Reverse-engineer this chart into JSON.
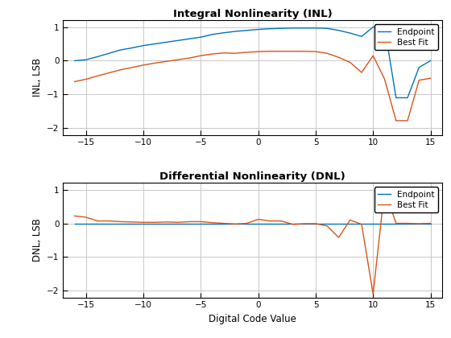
{
  "x": [
    -16,
    -15,
    -14,
    -13,
    -12,
    -11,
    -10,
    -9,
    -8,
    -7,
    -6,
    -5,
    -4,
    -3,
    -2,
    -1,
    0,
    1,
    2,
    3,
    4,
    5,
    6,
    7,
    8,
    9,
    10,
    11,
    12,
    13,
    14,
    15
  ],
  "inl_endpoint": [
    0.0,
    0.03,
    0.12,
    0.22,
    0.32,
    0.38,
    0.45,
    0.5,
    0.55,
    0.6,
    0.65,
    0.7,
    0.78,
    0.83,
    0.87,
    0.9,
    0.93,
    0.95,
    0.96,
    0.97,
    0.97,
    0.97,
    0.96,
    0.9,
    0.82,
    0.72,
    1.0,
    1.0,
    -1.1,
    -1.1,
    -0.2,
    0.0
  ],
  "inl_bestfit": [
    -0.62,
    -0.55,
    -0.45,
    -0.36,
    -0.27,
    -0.2,
    -0.13,
    -0.07,
    -0.02,
    0.03,
    0.08,
    0.15,
    0.2,
    0.23,
    0.22,
    0.25,
    0.27,
    0.28,
    0.28,
    0.28,
    0.28,
    0.27,
    0.22,
    0.1,
    -0.05,
    -0.35,
    0.15,
    -0.55,
    -1.78,
    -1.78,
    -0.58,
    -0.52
  ],
  "dnl_endpoint": [
    0.0,
    0.0,
    0.0,
    0.0,
    0.0,
    0.0,
    0.0,
    0.0,
    0.0,
    0.0,
    0.0,
    0.0,
    0.0,
    0.0,
    0.0,
    0.0,
    0.0,
    0.0,
    0.0,
    0.0,
    0.0,
    0.0,
    0.0,
    0.0,
    0.0,
    0.0,
    0.0,
    0.0,
    0.0,
    0.0,
    0.0,
    0.0
  ],
  "dnl_bestfit": [
    0.22,
    0.18,
    0.07,
    0.07,
    0.05,
    0.04,
    0.03,
    0.03,
    0.04,
    0.03,
    0.05,
    0.05,
    0.02,
    0.0,
    -0.02,
    0.0,
    0.12,
    0.07,
    0.07,
    -0.03,
    -0.01,
    -0.01,
    -0.08,
    -0.42,
    0.1,
    -0.03,
    -2.1,
    1.0,
    0.0,
    0.0,
    -0.01,
    0.0
  ],
  "xlim": [
    -17,
    16
  ],
  "inl_ylim": [
    -2.2,
    1.2
  ],
  "dnl_ylim": [
    -2.2,
    1.2
  ],
  "xticks": [
    -15,
    -10,
    -5,
    0,
    5,
    10,
    15
  ],
  "inl_yticks": [
    -2,
    -1,
    0,
    1
  ],
  "dnl_yticks": [
    -2,
    -1,
    0,
    1
  ],
  "inl_title": "Integral Nonlinearity (INL)",
  "dnl_title": "Differential Nonlinearity (DNL)",
  "inl_ylabel": "INL, LSB",
  "dnl_ylabel": "DNL, LSB",
  "xlabel": "Digital Code Value",
  "endpoint_color": "#0072BD",
  "bestfit_color": "#D95319",
  "bg_color": "#FFFFFF",
  "grid_color": "#C8C8C8",
  "legend_labels": [
    "Endpoint",
    "Best Fit"
  ]
}
